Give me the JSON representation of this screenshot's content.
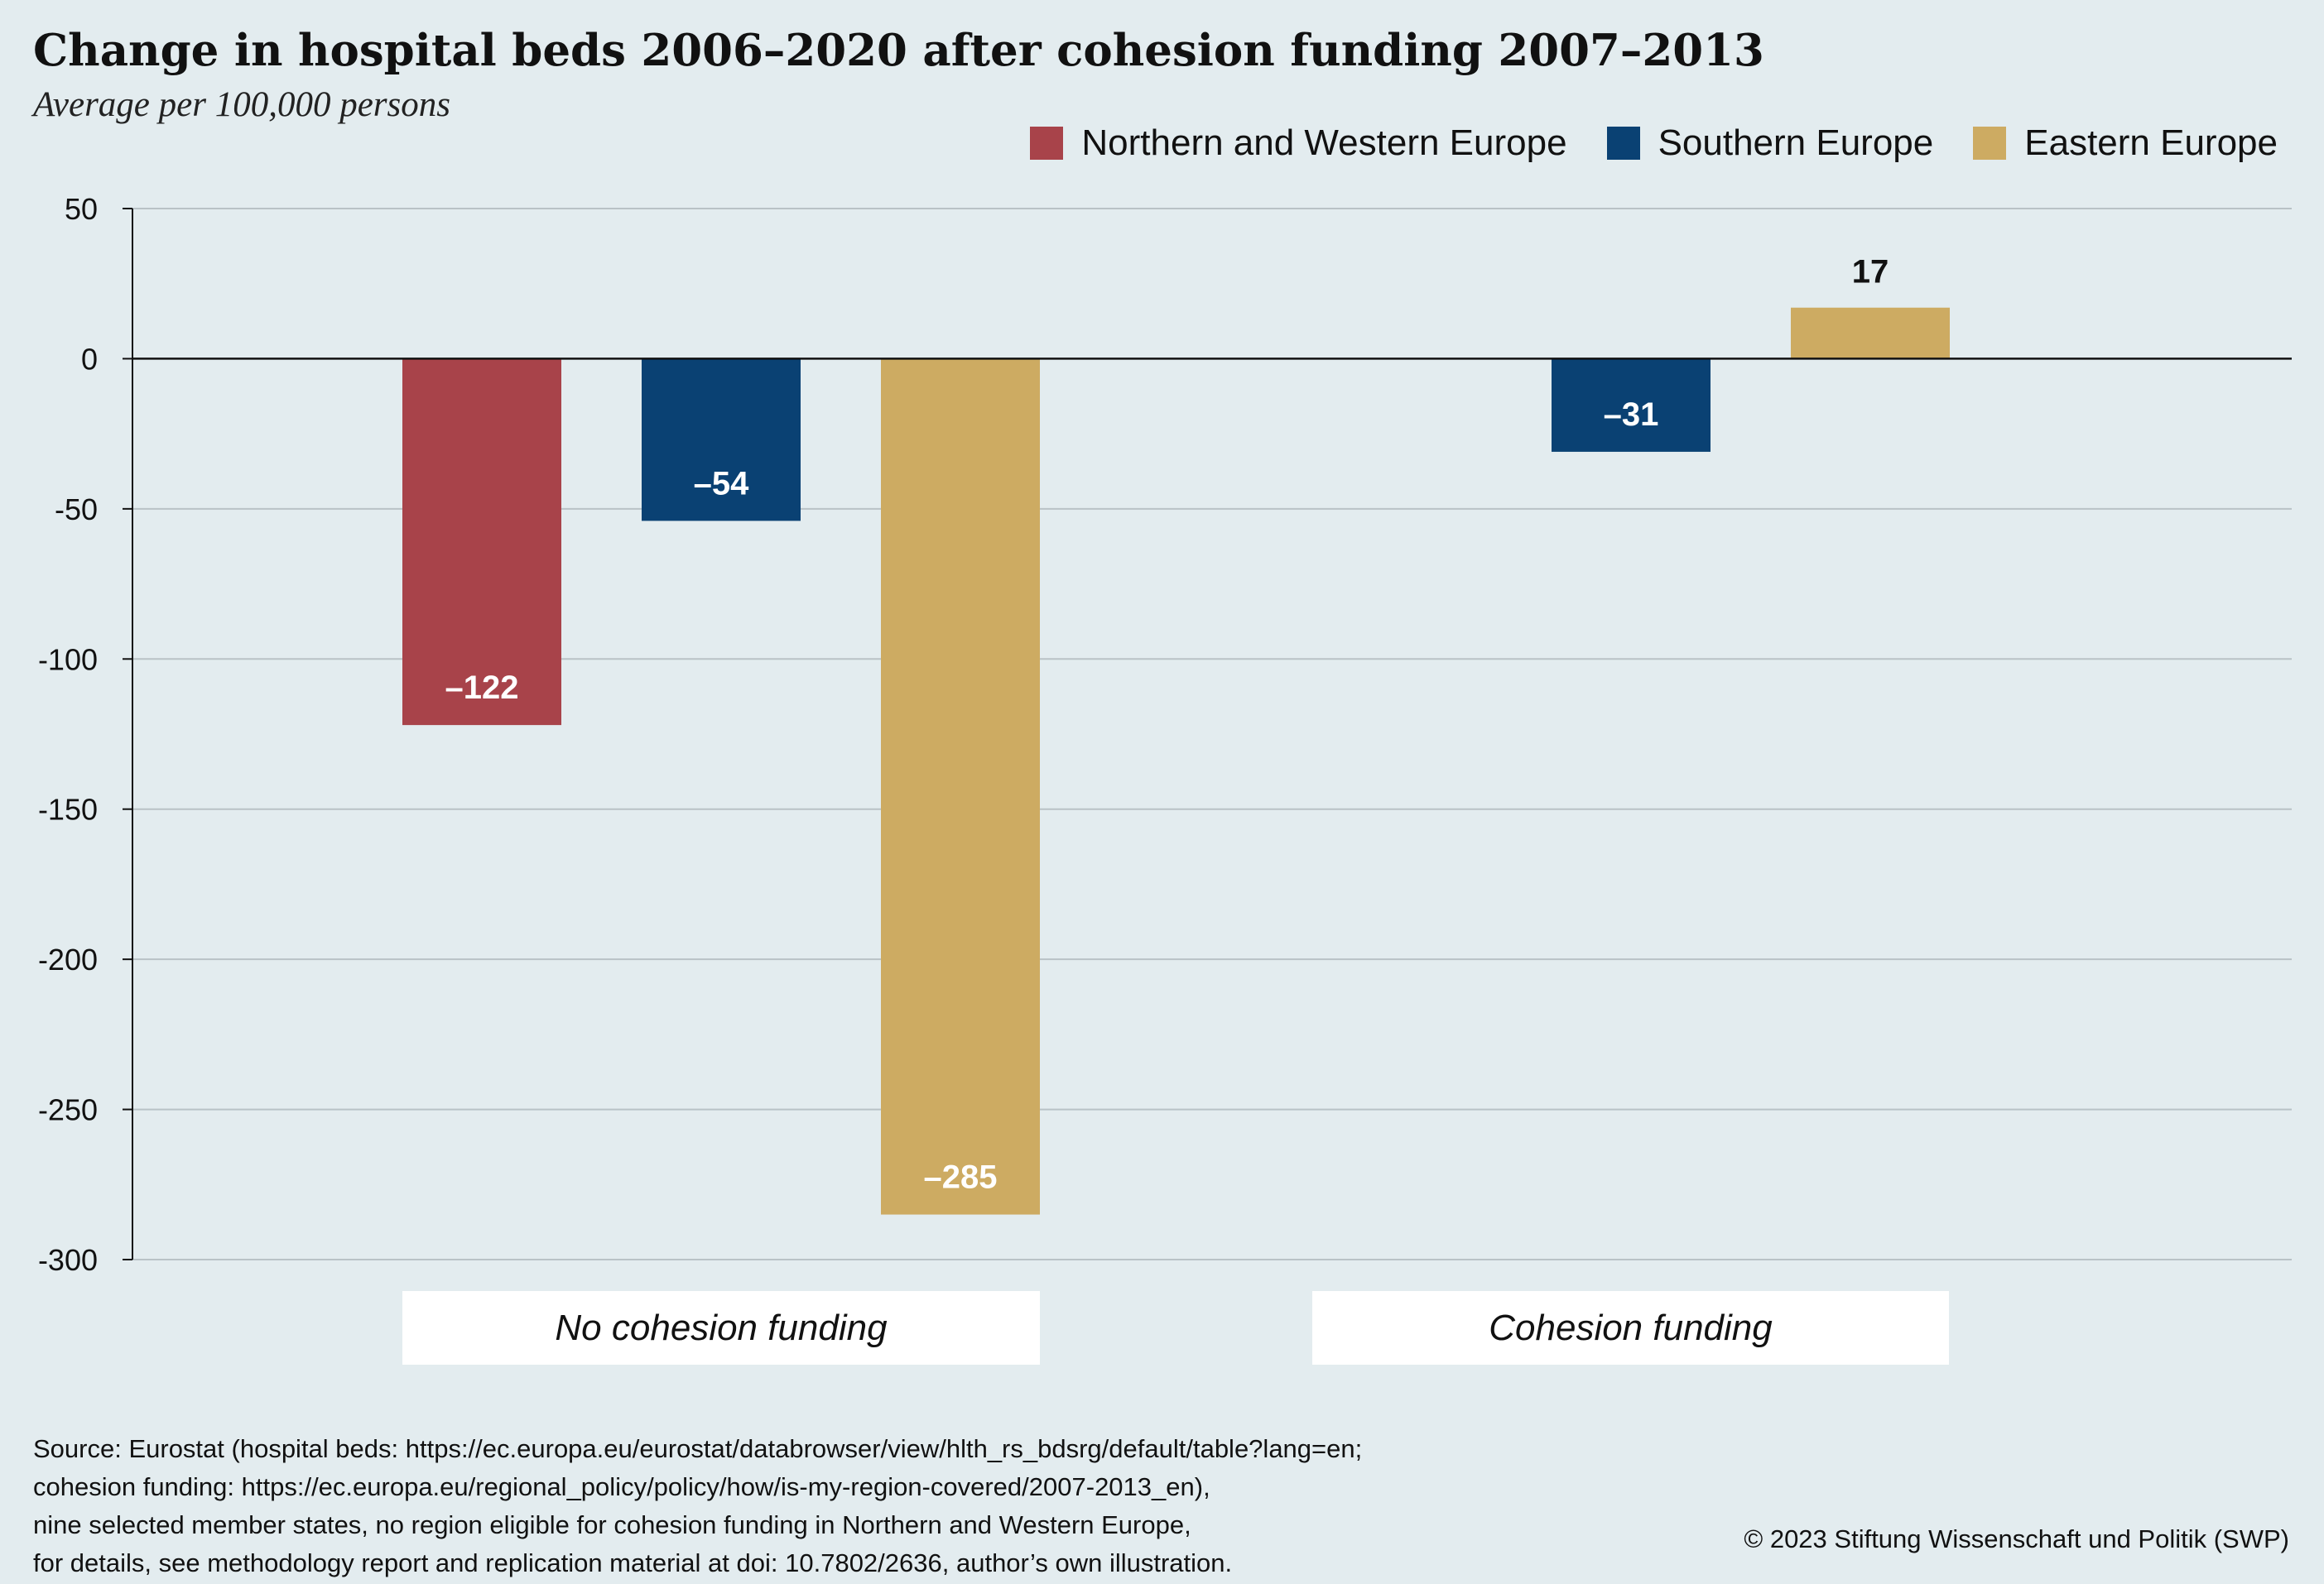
{
  "header": {
    "title": "Change in hospital beds 2006–2020 after cohesion funding 2007–2013",
    "subtitle": "Average per 100,000 persons"
  },
  "legend": {
    "items": [
      {
        "label": "Northern and Western Europe",
        "color": "#a8434a"
      },
      {
        "label": "Southern Europe",
        "color": "#0a4173"
      },
      {
        "label": "Eastern Europe",
        "color": "#cdab62"
      }
    ]
  },
  "chart_data": {
    "type": "bar",
    "title": "Change in hospital beds 2006–2020 after cohesion funding 2007–2013",
    "subtitle": "Average per 100,000 persons",
    "categories": [
      "No cohesion funding",
      "Cohesion funding"
    ],
    "series": [
      {
        "name": "Northern and Western Europe",
        "color": "#a8434a",
        "values": [
          -122,
          null
        ]
      },
      {
        "name": "Southern Europe",
        "color": "#0a4173",
        "values": [
          -54,
          -31
        ]
      },
      {
        "name": "Eastern Europe",
        "color": "#cdab62",
        "values": [
          -285,
          17
        ]
      }
    ],
    "data_labels": [
      [
        "–122",
        ""
      ],
      [
        "–54",
        "–31"
      ],
      [
        "–285",
        "17"
      ]
    ],
    "ylim": [
      -300,
      50
    ],
    "yticks": [
      50,
      0,
      -50,
      -100,
      -150,
      -200,
      -250,
      -300
    ],
    "grid": true,
    "legend_position": "top-right"
  },
  "footer": {
    "source_lines": [
      "Source: Eurostat (hospital beds: https://ec.europa.eu/eurostat/databrowser/view/hlth_rs_bdsrg/default/table?lang=en;",
      "cohesion funding: https://ec.europa.eu/regional_policy/policy/how/is-my-region-covered/2007-2013_en),",
      "nine selected member states, no region eligible for cohesion funding in Northern and Western Europe,",
      "for details, see methodology report and replication material at doi: 10.7802/2636, author’s own illustration."
    ],
    "copyright": "© 2023 Stiftung Wissenschaft und Politik (SWP)"
  }
}
